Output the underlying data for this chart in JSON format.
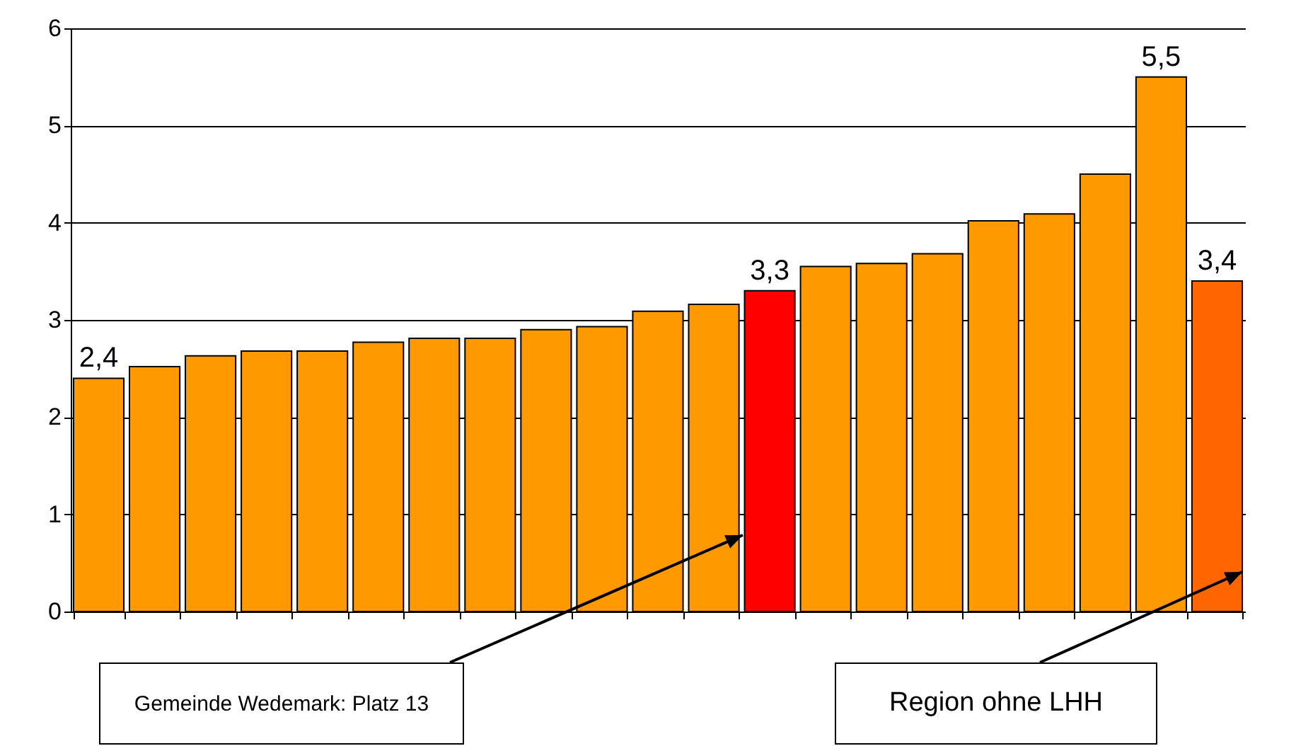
{
  "chart_data": {
    "type": "bar",
    "categories": [
      null,
      null,
      null,
      null,
      null,
      null,
      null,
      null,
      null,
      null,
      null,
      null,
      null,
      null,
      null,
      null,
      null,
      null,
      null,
      null,
      null
    ],
    "values": [
      2.4,
      2.52,
      2.63,
      2.68,
      2.68,
      2.77,
      2.81,
      2.81,
      2.9,
      2.93,
      3.09,
      3.16,
      3.3,
      3.55,
      3.58,
      3.68,
      4.02,
      4.09,
      4.5,
      5.5,
      3.4
    ],
    "colors": [
      "#ff9900",
      "#ff9900",
      "#ff9900",
      "#ff9900",
      "#ff9900",
      "#ff9900",
      "#ff9900",
      "#ff9900",
      "#ff9900",
      "#ff9900",
      "#ff9900",
      "#ff9900",
      "#ff0000",
      "#ff9900",
      "#ff9900",
      "#ff9900",
      "#ff9900",
      "#ff9900",
      "#ff9900",
      "#ff9900",
      "#ff6600"
    ],
    "value_labels": [
      "2,4",
      null,
      null,
      null,
      null,
      null,
      null,
      null,
      null,
      null,
      null,
      null,
      "3,3",
      null,
      null,
      null,
      null,
      null,
      null,
      "5,5",
      "3,4"
    ],
    "ylim": [
      0,
      6
    ],
    "yticks": [
      0,
      1,
      2,
      3,
      4,
      5,
      6
    ],
    "grid": "y",
    "annotations": [
      "Gemeinde Wedemark: Platz 13",
      "Region ohne LHH"
    ]
  }
}
